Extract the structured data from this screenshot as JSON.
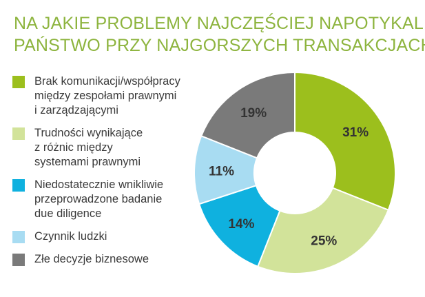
{
  "title": {
    "line1": "NA JAKIE PROBLEMY NAJCZĘŚCIEJ NAPOTYKALI",
    "line2": "PAŃSTWO PRZY NAJGORSZYCH TRANSAKCJACH?"
  },
  "chart_data": {
    "type": "pie",
    "donut": true,
    "start_angle_deg": 0,
    "direction": "clockwise",
    "series": [
      {
        "name": "Brak komunikacji/współpracy\nmiędzy zespołami prawnymi\ni zarządzającymi",
        "value": 31,
        "label": "31%",
        "color": "#9cbf1d"
      },
      {
        "name": "Trudności wynikające\nz różnic między\nsystemami prawnymi",
        "value": 25,
        "label": "25%",
        "color": "#d2e39a"
      },
      {
        "name": "Niedostatecznie wnikliwie\nprzeprowadzone badanie\ndue diligence",
        "value": 14,
        "label": "14%",
        "color": "#0fb1df"
      },
      {
        "name": "Czynnik ludzki",
        "value": 11,
        "label": "11%",
        "color": "#a8dcf2"
      },
      {
        "name": "Złe decyzje biznesowe",
        "value": 19,
        "label": "19%",
        "color": "#7a7a7a"
      }
    ],
    "legend": "left"
  }
}
